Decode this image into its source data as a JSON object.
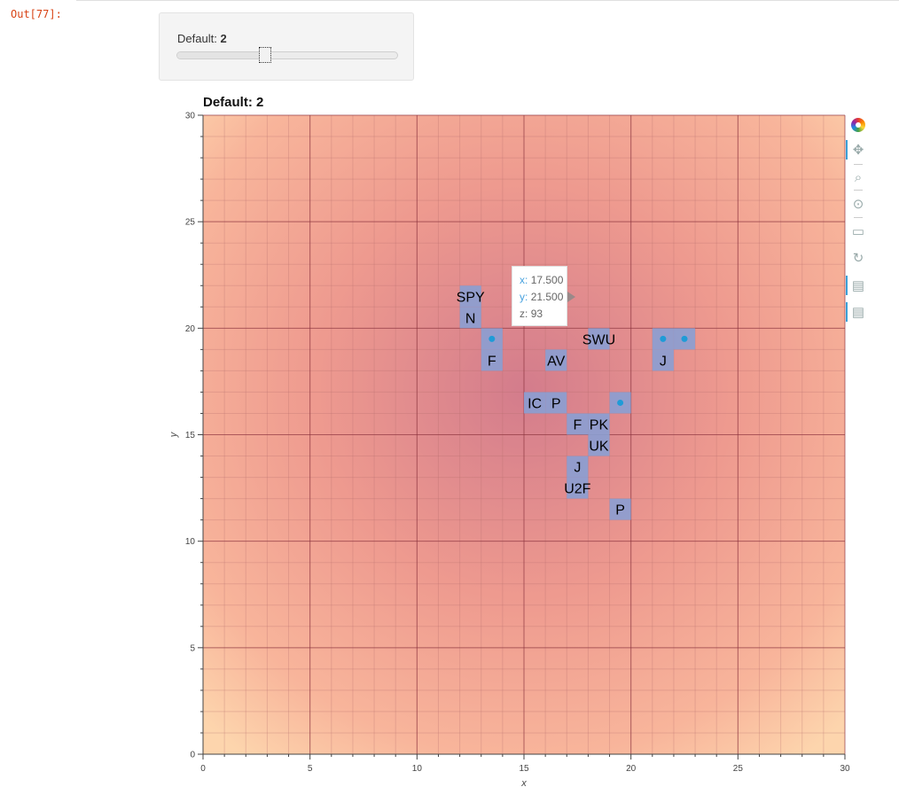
{
  "output_prompt": "Out[77]:",
  "widget": {
    "label": "Default:",
    "value": "2",
    "slider_fraction": 0.4
  },
  "chart_data": {
    "type": "heatmap",
    "title": "Default: 2",
    "xlabel": "x",
    "ylabel": "y",
    "xlim": [
      0,
      30
    ],
    "ylim": [
      0,
      30
    ],
    "x_ticks": [
      0,
      5,
      10,
      15,
      20,
      25,
      30
    ],
    "y_ticks": [
      0,
      5,
      10,
      15,
      20,
      25,
      30
    ],
    "grid": true,
    "background": "radial heatmap, darkest near (15, 17), lightest toward corners",
    "colors": {
      "peak": "#d37c8c",
      "mid": "#ee9a8f",
      "edge": "#fdd5ad",
      "cell": "#8a9fd3",
      "dot": "#1f9bd7"
    },
    "cells": [
      {
        "x": 12.5,
        "y": 21.5,
        "label": "SPY"
      },
      {
        "x": 12.5,
        "y": 20.5,
        "label": "N"
      },
      {
        "x": 13.5,
        "y": 19.5,
        "label": ""
      },
      {
        "x": 13.5,
        "y": 18.5,
        "label": "F"
      },
      {
        "x": 16.5,
        "y": 18.5,
        "label": "AV"
      },
      {
        "x": 18.5,
        "y": 19.5,
        "label": "SWU"
      },
      {
        "x": 21.5,
        "y": 19.5,
        "label": ""
      },
      {
        "x": 22.5,
        "y": 19.5,
        "label": ""
      },
      {
        "x": 21.5,
        "y": 18.5,
        "label": "J"
      },
      {
        "x": 15.5,
        "y": 16.5,
        "label": "IC"
      },
      {
        "x": 16.5,
        "y": 16.5,
        "label": "P"
      },
      {
        "x": 19.5,
        "y": 16.5,
        "label": ""
      },
      {
        "x": 17.5,
        "y": 15.5,
        "label": "F"
      },
      {
        "x": 18.5,
        "y": 15.5,
        "label": "PK"
      },
      {
        "x": 18.5,
        "y": 14.5,
        "label": "UK"
      },
      {
        "x": 17.5,
        "y": 13.5,
        "label": "J"
      },
      {
        "x": 17.5,
        "y": 12.5,
        "label": "U2F"
      },
      {
        "x": 19.5,
        "y": 11.5,
        "label": "P"
      }
    ],
    "tooltip": {
      "x_label": "x:",
      "x_value": "17.500",
      "y_label": "y:",
      "y_value": "21.500",
      "z_label": "z:",
      "z_value": "93"
    }
  },
  "toolbar": {
    "tools": [
      "bokeh-logo-icon",
      "pan-icon",
      "box-zoom-icon",
      "wheel-zoom-icon",
      "save-icon",
      "reset-icon",
      "hover-icon",
      "hover-icon"
    ]
  }
}
